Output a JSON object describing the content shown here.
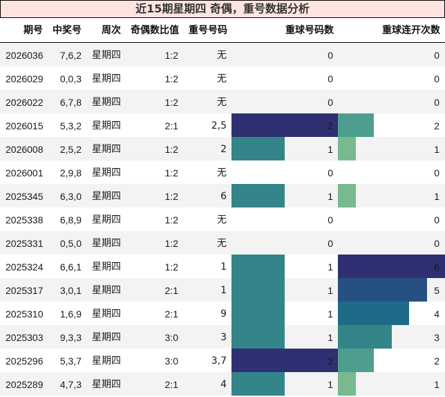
{
  "title": "近15期星期四 奇偶，重号数据分析",
  "columns": [
    "期号",
    "中奖号",
    "周次",
    "奇偶数比值",
    "重号号码",
    "重球号码数",
    "重球连开次数"
  ],
  "colors": {
    "title_bg": "#fde4df",
    "row_stripe": "#f3f3f3",
    "repeat_count": {
      "1": "#348589",
      "2": "#2e3071"
    },
    "streak": {
      "1": "#7ab890",
      "2": "#4e9e90",
      "3": "#348589",
      "4": "#1f6b87",
      "5": "#265082",
      "6": "#2e3071"
    }
  },
  "rows": [
    {
      "issue": "2026036",
      "numbers": "7,6,2",
      "weekday": "星期四",
      "odd_even": "1:2",
      "repeat_numbers": "无",
      "repeat_count": "0",
      "streak": "0"
    },
    {
      "issue": "2026029",
      "numbers": "0,0,3",
      "weekday": "星期四",
      "odd_even": "1:2",
      "repeat_numbers": "无",
      "repeat_count": "0",
      "streak": "0"
    },
    {
      "issue": "2026022",
      "numbers": "6,7,8",
      "weekday": "星期四",
      "odd_even": "1:2",
      "repeat_numbers": "无",
      "repeat_count": "0",
      "streak": "0"
    },
    {
      "issue": "2026015",
      "numbers": "5,3,2",
      "weekday": "星期四",
      "odd_even": "2:1",
      "repeat_numbers": "2,5",
      "repeat_count": "2",
      "streak": "2"
    },
    {
      "issue": "2026008",
      "numbers": "2,5,2",
      "weekday": "星期四",
      "odd_even": "1:2",
      "repeat_numbers": "2",
      "repeat_count": "1",
      "streak": "1"
    },
    {
      "issue": "2026001",
      "numbers": "2,9,8",
      "weekday": "星期四",
      "odd_even": "1:2",
      "repeat_numbers": "无",
      "repeat_count": "0",
      "streak": "0"
    },
    {
      "issue": "2025345",
      "numbers": "6,3,0",
      "weekday": "星期四",
      "odd_even": "1:2",
      "repeat_numbers": "6",
      "repeat_count": "1",
      "streak": "1"
    },
    {
      "issue": "2025338",
      "numbers": "6,8,9",
      "weekday": "星期四",
      "odd_even": "1:2",
      "repeat_numbers": "无",
      "repeat_count": "0",
      "streak": "0"
    },
    {
      "issue": "2025331",
      "numbers": "0,5,0",
      "weekday": "星期四",
      "odd_even": "1:2",
      "repeat_numbers": "无",
      "repeat_count": "0",
      "streak": "0"
    },
    {
      "issue": "2025324",
      "numbers": "6,6,1",
      "weekday": "星期四",
      "odd_even": "1:2",
      "repeat_numbers": "1",
      "repeat_count": "1",
      "streak": "6"
    },
    {
      "issue": "2025317",
      "numbers": "3,0,1",
      "weekday": "星期四",
      "odd_even": "2:1",
      "repeat_numbers": "1",
      "repeat_count": "1",
      "streak": "5"
    },
    {
      "issue": "2025310",
      "numbers": "1,6,9",
      "weekday": "星期四",
      "odd_even": "2:1",
      "repeat_numbers": "9",
      "repeat_count": "1",
      "streak": "4"
    },
    {
      "issue": "2025303",
      "numbers": "9,3,3",
      "weekday": "星期四",
      "odd_even": "3:0",
      "repeat_numbers": "3",
      "repeat_count": "1",
      "streak": "3"
    },
    {
      "issue": "2025296",
      "numbers": "5,3,7",
      "weekday": "星期四",
      "odd_even": "3:0",
      "repeat_numbers": "3,7",
      "repeat_count": "2",
      "streak": "2"
    },
    {
      "issue": "2025289",
      "numbers": "4,7,3",
      "weekday": "星期四",
      "odd_even": "2:1",
      "repeat_numbers": "4",
      "repeat_count": "1",
      "streak": "1"
    }
  ],
  "chart_data": {
    "type": "table",
    "title": "近15期星期四 奇偶，重号数据分析",
    "columns": [
      "期号",
      "中奖号",
      "周次",
      "奇偶数比值",
      "重号号码",
      "重球号码数",
      "重球连开次数"
    ],
    "categories": [
      "2026036",
      "2026029",
      "2026022",
      "2026015",
      "2026008",
      "2026001",
      "2025345",
      "2025338",
      "2025331",
      "2025324",
      "2025317",
      "2025310",
      "2025303",
      "2025296",
      "2025289"
    ],
    "series": [
      {
        "name": "重球号码数",
        "values": [
          0,
          0,
          0,
          2,
          1,
          0,
          1,
          0,
          0,
          1,
          1,
          1,
          1,
          2,
          1
        ],
        "max": 2
      },
      {
        "name": "重球连开次数",
        "values": [
          0,
          0,
          0,
          2,
          1,
          0,
          1,
          0,
          0,
          6,
          5,
          4,
          3,
          2,
          1
        ],
        "max": 6
      }
    ],
    "text_columns": {
      "中奖号": [
        "7,6,2",
        "0,0,3",
        "6,7,8",
        "5,3,2",
        "2,5,2",
        "2,9,8",
        "6,3,0",
        "6,8,9",
        "0,5,0",
        "6,6,1",
        "3,0,1",
        "1,6,9",
        "9,3,3",
        "5,3,7",
        "4,7,3"
      ],
      "周次": [
        "星期四",
        "星期四",
        "星期四",
        "星期四",
        "星期四",
        "星期四",
        "星期四",
        "星期四",
        "星期四",
        "星期四",
        "星期四",
        "星期四",
        "星期四",
        "星期四",
        "星期四"
      ],
      "奇偶数比值": [
        "1:2",
        "1:2",
        "1:2",
        "2:1",
        "1:2",
        "1:2",
        "1:2",
        "1:2",
        "1:2",
        "1:2",
        "2:1",
        "2:1",
        "3:0",
        "3:0",
        "2:1"
      ],
      "重号号码": [
        "无",
        "无",
        "无",
        "2,5",
        "2",
        "无",
        "6",
        "无",
        "无",
        "1",
        "1",
        "9",
        "3",
        "3,7",
        "4"
      ]
    }
  }
}
